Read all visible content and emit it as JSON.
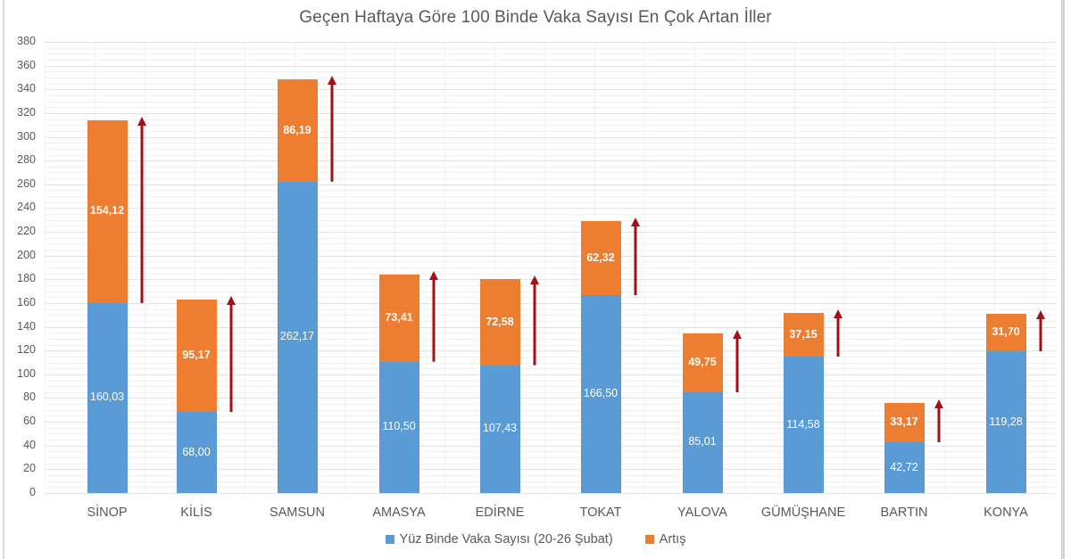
{
  "chart_data": {
    "type": "bar",
    "stacked": true,
    "title": "Geçen Haftaya Göre 100 Binde Vaka Sayısı En Çok Artan İller",
    "xlabel": "",
    "ylabel": "",
    "ylim": [
      0,
      380
    ],
    "yticks": [
      0,
      20,
      40,
      60,
      80,
      100,
      120,
      140,
      160,
      180,
      200,
      220,
      240,
      260,
      280,
      300,
      320,
      340,
      360,
      380
    ],
    "grid": true,
    "legend_position": "bottom",
    "categories": [
      "SİNOP",
      "KİLİS",
      "SAMSUN",
      "AMASYA",
      "EDİRNE",
      "TOKAT",
      "YALOVA",
      "GÜMÜŞHANE",
      "BARTIN",
      "KONYA"
    ],
    "series": [
      {
        "name": "Yüz Binde Vaka Sayısı (20-26 Şubat)",
        "color": "#5b9bd5",
        "values": [
          160.03,
          68.0,
          262.17,
          110.5,
          107.43,
          166.5,
          85.01,
          114.58,
          42.72,
          119.28
        ],
        "labels": [
          "160,03",
          "68,00",
          "262,17",
          "110,50",
          "107,43",
          "166,50",
          "85,01",
          "114,58",
          "42,72",
          "119,28"
        ]
      },
      {
        "name": "Artış",
        "color": "#ed7d31",
        "values": [
          154.12,
          95.17,
          86.19,
          73.41,
          72.58,
          62.32,
          49.75,
          37.15,
          33.17,
          31.7
        ],
        "labels": [
          "154,12",
          "95,17",
          "86,19",
          "73,41",
          "72,58",
          "62,32",
          "49,75",
          "37,15",
          "33,17",
          "31,70"
        ]
      }
    ],
    "annotations": "Dark red upward arrows beside each Artış segment",
    "arrow_color": "#a50f15"
  },
  "legend": {
    "items": [
      {
        "label": "Yüz Binde Vaka Sayısı (20-26 Şubat)",
        "color": "#5b9bd5"
      },
      {
        "label": "Artış",
        "color": "#ed7d31"
      }
    ]
  }
}
